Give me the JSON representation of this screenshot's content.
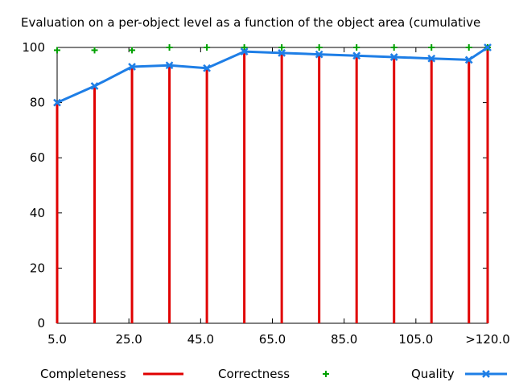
{
  "chart_data": {
    "type": "line",
    "title": "Evaluation on a per-object level as a function of the object area (cumulative",
    "xlabel": "",
    "ylabel": "",
    "ylim": [
      0,
      100
    ],
    "grid": false,
    "legend_position": "bottom",
    "x": [
      5,
      15,
      25,
      35,
      45,
      55,
      65,
      75,
      85,
      95,
      105,
      115,
      120
    ],
    "x_tick_labels": [
      "5.0",
      "25.0",
      "45.0",
      "65.0",
      "85.0",
      "105.0",
      ">120.0"
    ],
    "x_tick_values": [
      5,
      25,
      45,
      65,
      85,
      105,
      125
    ],
    "y_tick_labels": [
      "0",
      "20",
      "40",
      "60",
      "80",
      "100"
    ],
    "y_tick_values": [
      0,
      20,
      40,
      60,
      80,
      100
    ],
    "series": [
      {
        "name": "Completeness",
        "kind": "impulse",
        "color": "#e00000",
        "values": [
          80,
          86,
          93,
          93.5,
          92.5,
          98.5,
          98,
          97.5,
          97,
          96.5,
          96,
          95.5,
          100
        ]
      },
      {
        "name": "Correctness",
        "kind": "points",
        "color": "#00a000",
        "values": [
          99,
          99,
          99,
          100,
          100,
          100,
          100,
          100,
          100,
          100,
          100,
          100,
          100
        ]
      },
      {
        "name": "Quality",
        "kind": "linespoints",
        "color": "#1e7ee6",
        "values": [
          80,
          86,
          93,
          93.5,
          92.5,
          98.5,
          98,
          97.5,
          97,
          96.5,
          96,
          95.5,
          100
        ]
      }
    ]
  }
}
